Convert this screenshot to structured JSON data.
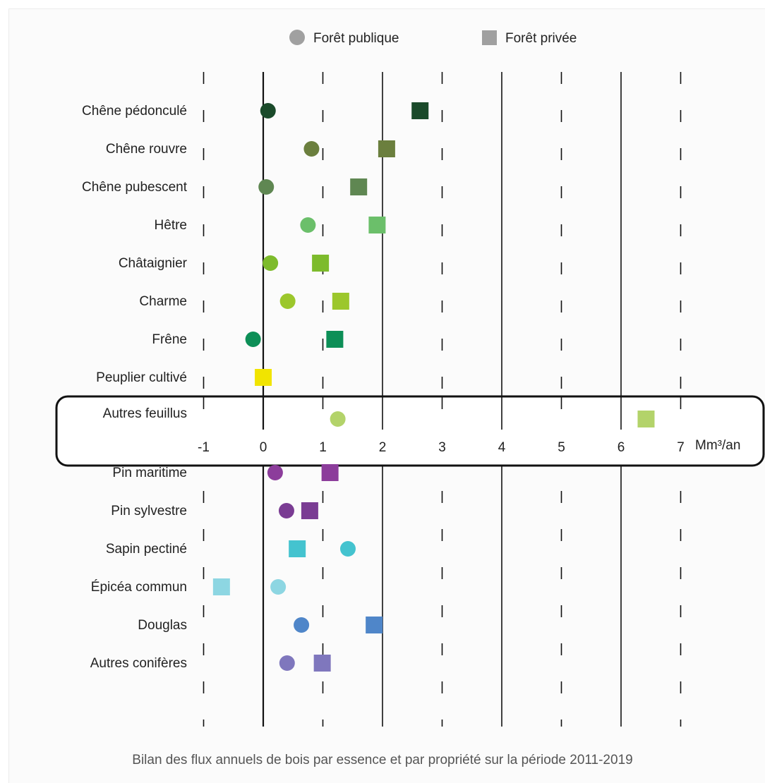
{
  "caption": "Bilan des flux annuels de bois par essence et par propriété sur la période 2011-2019",
  "chart_data": {
    "type": "scatter",
    "orientation": "horizontal",
    "title": "",
    "x_unit": "Mm³/an",
    "xlim": [
      -1,
      7
    ],
    "xticks": [
      -1,
      0,
      1,
      2,
      3,
      4,
      5,
      6,
      7
    ],
    "highlighted_category": "Autres feuillus",
    "legend": {
      "placement": "top",
      "entries": [
        {
          "name": "Forêt publique",
          "marker": "circle",
          "color": "#a0a0a0"
        },
        {
          "name": "Forêt privée",
          "marker": "square",
          "color": "#a0a0a0"
        }
      ]
    },
    "groups": [
      {
        "categories": [
          {
            "name": "Chêne pédonculé",
            "publique": 0.08,
            "privee": 2.63,
            "color_pub": "#1a4a2a",
            "color_priv": "#1a4a2a"
          },
          {
            "name": "Chêne rouvre",
            "publique": 0.81,
            "privee": 2.07,
            "color_pub": "#6b7f3e",
            "color_priv": "#6b7f3e"
          },
          {
            "name": "Chêne pubescent",
            "publique": 0.05,
            "privee": 1.6,
            "color_pub": "#5f8752",
            "color_priv": "#5f8752"
          },
          {
            "name": "Hêtre",
            "publique": 0.75,
            "privee": 1.91,
            "color_pub": "#6bbf6a",
            "color_priv": "#6bbf6a"
          },
          {
            "name": "Châtaignier",
            "publique": 0.12,
            "privee": 0.96,
            "color_pub": "#7dbb2c",
            "color_priv": "#7dbb2c"
          },
          {
            "name": "Charme",
            "publique": 0.41,
            "privee": 1.3,
            "color_pub": "#9cc72c",
            "color_priv": "#9cc72c"
          },
          {
            "name": "Frêne",
            "publique": -0.17,
            "privee": 1.2,
            "color_pub": "#0d8f57",
            "color_priv": "#0d8f57"
          },
          {
            "name": "Peuplier cultivé",
            "publique": null,
            "privee": 0.0,
            "color_pub": "#f1e400",
            "color_priv": "#f1e400"
          },
          {
            "name": "Autres feuillus",
            "publique": 1.25,
            "privee": 6.42,
            "color_pub": "#b3d36a",
            "color_priv": "#b3d36a"
          }
        ]
      },
      {
        "categories": [
          {
            "name": "Pin maritime",
            "publique": 0.2,
            "privee": 1.12,
            "color_pub": "#8c3d9b",
            "color_priv": "#8c3d9b"
          },
          {
            "name": "Pin sylvestre",
            "publique": 0.39,
            "privee": 0.78,
            "color_pub": "#7a3c93",
            "color_priv": "#7a3c93"
          },
          {
            "name": "Sapin pectiné",
            "publique": 1.42,
            "privee": 0.57,
            "color_pub": "#44c3cf",
            "color_priv": "#44c3cf"
          },
          {
            "name": "Épicéa commun",
            "publique": 0.25,
            "privee": -0.7,
            "color_pub": "#8dd6e2",
            "color_priv": "#8dd6e2"
          },
          {
            "name": "Douglas",
            "publique": 0.64,
            "privee": 1.86,
            "color_pub": "#4f86c9",
            "color_priv": "#4f86c9"
          },
          {
            "name": "Autres conifères",
            "publique": 0.4,
            "privee": 0.99,
            "color_pub": "#7f77bd",
            "color_priv": "#7f77bd"
          }
        ]
      }
    ]
  }
}
